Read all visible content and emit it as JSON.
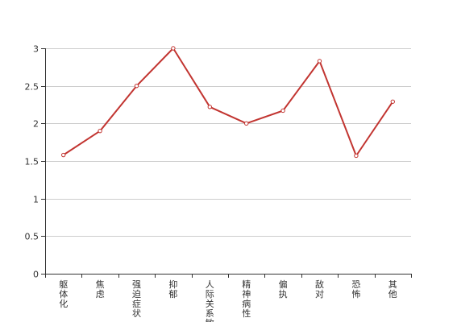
{
  "chart_data": {
    "type": "line",
    "categories": [
      "躯体化",
      "焦虑",
      "强迫症状",
      "抑郁",
      "人际关系敏感",
      "精神病性",
      "偏执",
      "敌对",
      "恐怖",
      "其他"
    ],
    "series": [
      {
        "values": [
          1.58,
          1.9,
          2.5,
          3.0,
          2.22,
          2.0,
          2.17,
          2.83,
          1.57,
          2.29
        ]
      }
    ],
    "ylim": [
      0,
      3
    ],
    "yticks": [
      "0",
      "0.5",
      "1",
      "1.5",
      "2",
      "2.5",
      "3"
    ],
    "grid": true,
    "line_color": "#c23531",
    "grid_color": "#cccccc",
    "axis_color": "#333333"
  }
}
